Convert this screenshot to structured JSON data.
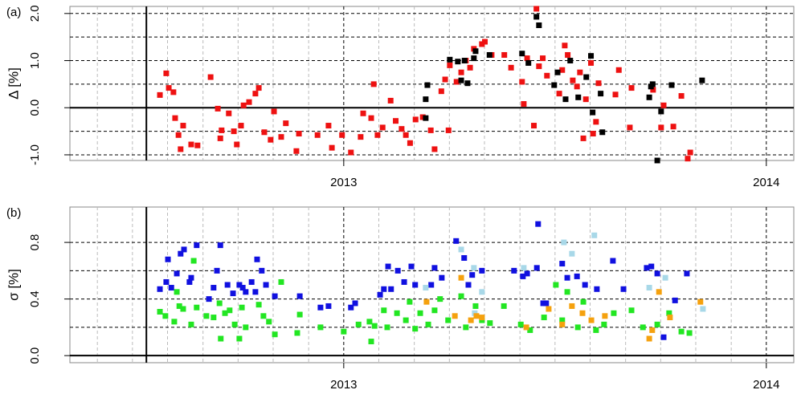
{
  "chart_data": [
    {
      "type": "scatter",
      "panel_label": "(a)",
      "ylabel": "Δ [%]",
      "xlim": [
        2012.352,
        2014.065
      ],
      "xticks": [
        2013,
        2014
      ],
      "xgrid": [
        2012.417,
        2012.5,
        2012.583,
        2012.667,
        2012.75,
        2012.833,
        2012.917,
        2013.083,
        2013.167,
        2013.25,
        2013.333,
        2013.417,
        2013.5,
        2013.583,
        2013.667,
        2013.75,
        2013.833,
        2013.917
      ],
      "ylim": [
        -1.12,
        2.15
      ],
      "yticks": [
        {
          "value": -1,
          "label": "-1.0"
        },
        {
          "value": 0,
          "label": "0.0"
        },
        {
          "value": 1,
          "label": "1.0"
        },
        {
          "value": 2,
          "label": "2.0"
        }
      ],
      "ygrid": [
        -1,
        -0.5,
        0.5,
        1,
        1.5,
        2
      ],
      "hline": 0,
      "vline": 2012.533,
      "series": [
        {
          "color": "#ee1111",
          "x": [
            2012.565,
            2012.58,
            2012.586,
            2012.597,
            2012.601,
            2012.609,
            2012.614,
            2012.62,
            2012.639,
            2012.654,
            2012.685,
            2012.702,
            2012.708,
            2012.711,
            2012.728,
            2012.74,
            2012.747,
            2012.757,
            2012.763,
            2012.776,
            2012.791,
            2012.799,
            2012.812,
            2012.827,
            2012.835,
            2012.852,
            2012.863,
            2012.888,
            2012.894,
            2012.938,
            2012.964,
            2012.972,
            2012.996,
            2013.017,
            2013.04,
            2013.046,
            2013.065,
            2013.071,
            2013.08,
            2013.092,
            2013.111,
            2013.123,
            2013.137,
            2013.147,
            2013.157,
            2013.17,
            2013.187,
            2013.206,
            2013.215,
            2013.231,
            2013.24,
            2013.248,
            2013.251,
            2013.267,
            2013.278,
            2013.289,
            2013.299,
            2013.308,
            2013.327,
            2013.334,
            2013.35,
            2013.38,
            2013.396,
            2013.426,
            2013.422,
            2013.434,
            2013.45,
            2013.456,
            2013.462,
            2013.471,
            2013.481,
            2013.51,
            2013.517,
            2013.523,
            2013.53,
            2013.542,
            2013.552,
            2013.559,
            2013.567,
            2013.573,
            2013.585,
            2013.59,
            2013.597,
            2013.603,
            2013.643,
            2013.651,
            2013.677,
            2013.681,
            2013.732,
            2013.751,
            2013.757,
            2013.799,
            2013.78,
            2013.814,
            2013.82
          ],
          "values": [
            0.27,
            0.73,
            0.42,
            0.33,
            -0.22,
            -0.58,
            -0.88,
            -0.38,
            -0.78,
            -0.8,
            0.65,
            -0.02,
            -0.65,
            -0.48,
            -0.12,
            -0.5,
            -0.78,
            -0.38,
            0.05,
            0.12,
            0.3,
            0.42,
            -0.52,
            -0.68,
            -0.08,
            -0.62,
            -0.33,
            -0.92,
            -0.55,
            -0.58,
            -0.38,
            -0.85,
            -0.58,
            -0.95,
            -0.62,
            -0.12,
            -0.22,
            0.5,
            -0.58,
            -0.42,
            0.15,
            -0.28,
            -0.45,
            -0.58,
            -0.75,
            -0.25,
            -0.2,
            -0.48,
            -0.88,
            0.35,
            0.6,
            -0.48,
            0.9,
            0.55,
            0.75,
            1.0,
            0.85,
            1.25,
            1.35,
            1.4,
            1.12,
            1.12,
            0.85,
            0.08,
            0.55,
            1.05,
            -0.38,
            2.1,
            0.88,
            1.05,
            0.68,
            0.3,
            0.8,
            1.32,
            1.12,
            0.58,
            0.45,
            0.75,
            -0.65,
            0.18,
            0.95,
            -0.55,
            -0.3,
            0.52,
            0.28,
            0.8,
            -0.42,
            0.42,
            0.38,
            -0.42,
            0.05,
            0.25,
            -0.4,
            -1.08,
            -0.95
          ]
        },
        {
          "color": "#000000",
          "x": [
            2013.194,
            2013.194,
            2013.198,
            2013.251,
            2013.27,
            2013.278,
            2013.286,
            2013.293,
            2013.308,
            2013.312,
            2013.345,
            2013.422,
            2013.437,
            2013.456,
            2013.462,
            2013.498,
            2013.506,
            2013.525,
            2013.536,
            2013.555,
            2013.574,
            2013.585,
            2013.589,
            2013.608,
            2013.612,
            2013.723,
            2013.727,
            2013.731,
            2013.742,
            2013.751,
            2013.776,
            2013.848
          ],
          "values": [
            -0.22,
            0.18,
            0.48,
            1.02,
            0.98,
            0.58,
            1.0,
            0.52,
            1.05,
            1.2,
            1.12,
            1.15,
            0.95,
            1.93,
            1.75,
            0.48,
            0.75,
            0.18,
            1.0,
            0.22,
            0.65,
            1.1,
            -0.1,
            0.3,
            -0.52,
            0.22,
            0.45,
            0.5,
            -1.12,
            -0.08,
            0.48,
            0.58
          ]
        }
      ]
    },
    {
      "type": "scatter",
      "panel_label": "(b)",
      "ylabel": "σ [%]",
      "xlim": [
        2012.352,
        2014.065
      ],
      "xticks": [
        2013,
        2014
      ],
      "xgrid": [
        2012.417,
        2012.5,
        2012.583,
        2012.667,
        2012.75,
        2012.833,
        2012.917,
        2013.083,
        2013.167,
        2013.25,
        2013.333,
        2013.417,
        2013.5,
        2013.583,
        2013.667,
        2013.75,
        2013.833,
        2013.917
      ],
      "ylim": [
        -0.05,
        1.05
      ],
      "yticks": [
        {
          "value": 0,
          "label": "0.0"
        },
        {
          "value": 0.4,
          "label": "0.4"
        },
        {
          "value": 0.8,
          "label": "0.8"
        }
      ],
      "ygrid": [
        0.2,
        0.4,
        0.6,
        0.8
      ],
      "hline": 0,
      "vline": 2012.533,
      "series": [
        {
          "color": "#1010e0",
          "x": [
            2012.565,
            2012.58,
            2012.584,
            2012.592,
            2012.605,
            2012.614,
            2012.622,
            2012.635,
            2012.639,
            2012.652,
            2012.681,
            2012.692,
            2012.7,
            2012.708,
            2012.725,
            2012.738,
            2012.753,
            2012.761,
            2012.768,
            2012.782,
            2012.791,
            2012.795,
            2012.806,
            2012.816,
            2012.837,
            2012.896,
            2012.945,
            2012.964,
            2013.017,
            2013.027,
            2013.086,
            2013.095,
            2013.105,
            2013.112,
            2013.128,
            2013.143,
            2013.16,
            2013.169,
            2013.207,
            2013.215,
            2013.232,
            2013.266,
            2013.285,
            2013.295,
            2013.304,
            2013.327,
            2013.403,
            2013.424,
            2013.434,
            2013.457,
            2013.46,
            2013.472,
            2013.479,
            2013.517,
            2013.529,
            2013.552,
            2013.571,
            2013.599,
            2013.637,
            2013.662,
            2013.717,
            2013.728,
            2013.742,
            2013.757,
            2013.784,
            2013.812
          ],
          "values": [
            0.47,
            0.52,
            0.68,
            0.48,
            0.58,
            0.72,
            0.75,
            0.52,
            0.55,
            0.78,
            0.4,
            0.48,
            0.6,
            0.78,
            0.5,
            0.44,
            0.5,
            0.48,
            0.45,
            0.52,
            0.45,
            0.68,
            0.6,
            0.5,
            0.42,
            0.42,
            0.34,
            0.35,
            0.34,
            0.37,
            0.43,
            0.47,
            0.63,
            0.47,
            0.6,
            0.52,
            0.63,
            0.5,
            0.5,
            0.62,
            0.55,
            0.81,
            0.69,
            0.5,
            0.57,
            0.6,
            0.6,
            0.56,
            0.58,
            0.62,
            0.93,
            0.37,
            0.37,
            0.65,
            0.55,
            0.56,
            0.5,
            0.47,
            0.67,
            0.47,
            0.62,
            0.63,
            0.58,
            0.13,
            0.39,
            0.58
          ]
        },
        {
          "color": "#a8d8e8",
          "x": [
            2013.194,
            2013.278,
            2013.308,
            2013.327,
            2013.426,
            2013.521,
            2013.54,
            2013.593,
            2013.723,
            2013.761,
            2013.85,
            2013.31
          ],
          "values": [
            0.48,
            0.75,
            0.62,
            0.45,
            0.62,
            0.8,
            0.72,
            0.85,
            0.48,
            0.55,
            0.33,
            0.3
          ]
        },
        {
          "color": "#22e622",
          "x": [
            2012.565,
            2012.578,
            2012.599,
            2012.605,
            2012.611,
            2012.62,
            2012.639,
            2012.645,
            2012.652,
            2012.675,
            2012.692,
            2012.706,
            2012.709,
            2012.719,
            2012.73,
            2012.742,
            2012.753,
            2012.759,
            2012.768,
            2012.799,
            2012.81,
            2012.823,
            2012.837,
            2012.852,
            2012.89,
            2012.896,
            2012.945,
            2013.0,
            2013.035,
            2013.061,
            2013.065,
            2013.073,
            2013.095,
            2013.103,
            2013.126,
            2013.147,
            2013.156,
            2013.169,
            2013.181,
            2013.2,
            2013.215,
            2013.228,
            2013.247,
            2013.278,
            2013.289,
            2013.312,
            2013.327,
            2013.346,
            2013.379,
            2013.419,
            2013.441,
            2013.474,
            2013.502,
            2013.517,
            2013.529,
            2013.554,
            2013.567,
            2013.597,
            2013.616,
            2013.639,
            2013.681,
            2013.708,
            2013.742,
            2013.77,
            2013.799,
            2013.818
          ],
          "values": [
            0.31,
            0.28,
            0.24,
            0.45,
            0.35,
            0.33,
            0.22,
            0.67,
            0.34,
            0.28,
            0.27,
            0.37,
            0.12,
            0.3,
            0.32,
            0.22,
            0.12,
            0.34,
            0.2,
            0.36,
            0.28,
            0.24,
            0.15,
            0.52,
            0.16,
            0.29,
            0.2,
            0.17,
            0.22,
            0.24,
            0.1,
            0.21,
            0.32,
            0.2,
            0.3,
            0.25,
            0.38,
            0.19,
            0.3,
            0.22,
            0.32,
            0.4,
            0.25,
            0.42,
            0.2,
            0.35,
            0.25,
            0.23,
            0.35,
            0.22,
            0.18,
            0.27,
            0.5,
            0.25,
            0.45,
            0.2,
            0.38,
            0.18,
            0.22,
            0.3,
            0.32,
            0.2,
            0.22,
            0.3,
            0.17,
            0.16
          ]
        },
        {
          "color": "#f5a10e",
          "x": [
            2013.196,
            2013.263,
            2013.278,
            2013.301,
            2013.314,
            2013.327,
            2013.432,
            2013.485,
            2013.517,
            2013.54,
            2013.565,
            2013.586,
            2013.618,
            2013.723,
            2013.73,
            2013.746,
            2013.772,
            2013.844
          ],
          "values": [
            0.38,
            0.28,
            0.55,
            0.25,
            0.28,
            0.27,
            0.2,
            0.33,
            0.22,
            0.35,
            0.3,
            0.25,
            0.28,
            0.12,
            0.18,
            0.45,
            0.27,
            0.38
          ]
        }
      ]
    }
  ]
}
